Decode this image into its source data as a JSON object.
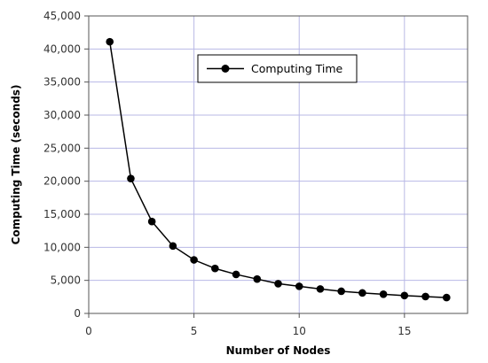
{
  "chart_data": {
    "type": "line",
    "title": "",
    "xlabel": "Number of Nodes",
    "ylabel": "Computing Time (seconds)",
    "xlim": [
      0,
      18
    ],
    "ylim": [
      0,
      45000
    ],
    "xticks": [
      0,
      5,
      10,
      15
    ],
    "xtick_labels": [
      "0",
      "5",
      "10",
      "15"
    ],
    "yticks": [
      0,
      5000,
      10000,
      15000,
      20000,
      25000,
      30000,
      35000,
      40000,
      45000
    ],
    "ytick_labels": [
      "0",
      "5,000",
      "10,000",
      "15,000",
      "20,000",
      "25,000",
      "30,000",
      "35,000",
      "40,000",
      "45,000"
    ],
    "grid": true,
    "legend_position": "top-center",
    "colors": {
      "series": "#000000",
      "grid": "#b8b8e6",
      "frame": "#555555"
    },
    "series": [
      {
        "name": "Computing Time",
        "x": [
          1,
          2,
          3,
          4,
          5,
          6,
          7,
          8,
          9,
          10,
          11,
          12,
          13,
          14,
          15,
          16,
          17
        ],
        "y": [
          41100,
          20400,
          13900,
          10200,
          8100,
          6800,
          5900,
          5200,
          4500,
          4100,
          3700,
          3350,
          3100,
          2900,
          2700,
          2550,
          2400
        ]
      }
    ]
  }
}
